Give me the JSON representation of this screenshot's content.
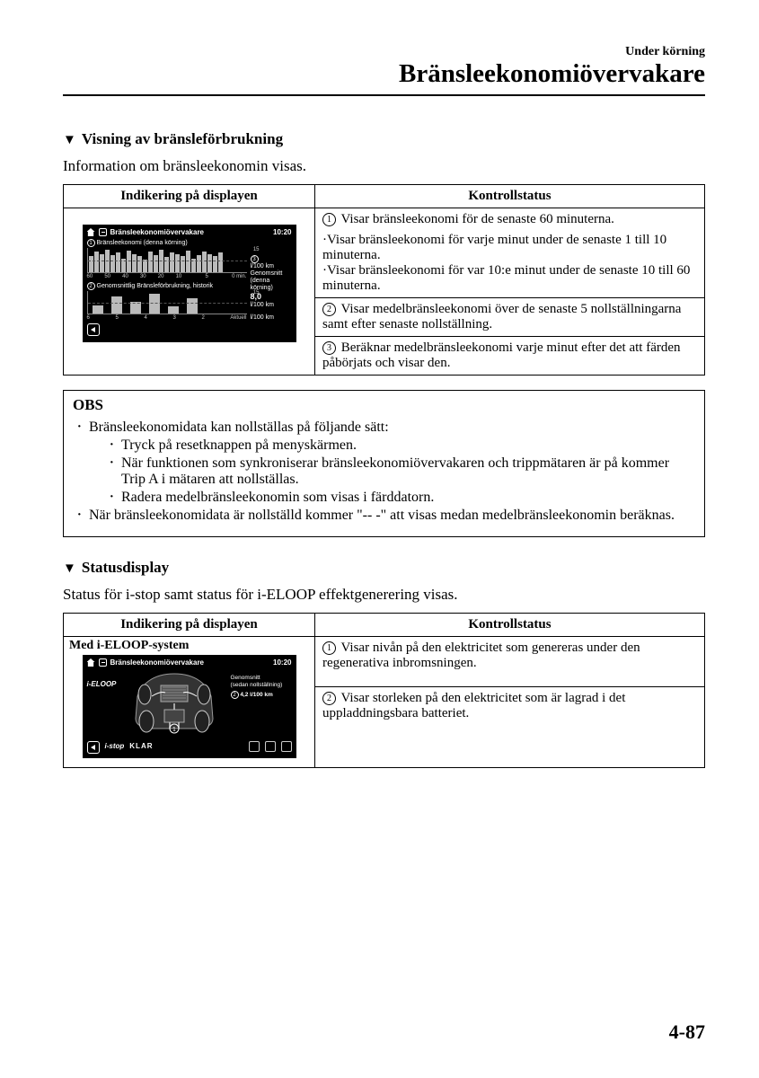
{
  "header": {
    "small": "Under körning",
    "large": "Bränsleekonomiövervakare"
  },
  "section1": {
    "title": "Visning av bränsleförbrukning",
    "intro": "Information om bränsleekonomin visas.",
    "th_display": "Indikering på displayen",
    "th_status": "Kontrollstatus",
    "row1": " Visar bränsleekonomi för de senaste 60 minuterna.",
    "row1b": "·Visar bränsleekonomi för varje minut under de senaste 1 till 10 minuterna.",
    "row1c": "·Visar bränsleekonomi för var 10:e minut under de senaste 10 till 60 minuterna.",
    "row2": " Visar medelbränsleekonomi över de senaste 5 nollställningarna samt efter senaste nollställning.",
    "row3": " Beräknar medelbränsleekonomi varje minut efter det att färden påbörjats och visar den."
  },
  "display1": {
    "title": "Bränsleekonomiövervakare",
    "time": "10:20",
    "chart1_label": "Bränsleekonomi (denna körning)",
    "chart1_x": [
      "60",
      "50",
      "40",
      "30",
      "20",
      "10",
      "",
      "5",
      "",
      "0 min."
    ],
    "chart1_bars": [
      14,
      18,
      16,
      20,
      15,
      17,
      12,
      19,
      16,
      14,
      11,
      18,
      15,
      20,
      13,
      17,
      16,
      14,
      19,
      12,
      15,
      18,
      16,
      14,
      17
    ],
    "chart1_ymax": 15,
    "chart2_label": "Genomsnittlig Bränsleförbrukning, historik",
    "chart2_x": [
      "6",
      "5",
      "4",
      "3",
      "2",
      "Aktuell"
    ],
    "chart2_bars": [
      8,
      16,
      11,
      19,
      7,
      14
    ],
    "chart2_ymax": 15,
    "side_unit": "l/100 km",
    "side_label": "Genomsnitt (denna körning)",
    "avg": "8,0",
    "avg_unit": "l/100 km"
  },
  "obs": {
    "title": "OBS",
    "l1": "Bränsleekonomidata kan nollställas på följande sätt:",
    "l1a": "Tryck på resetknappen på menyskärmen.",
    "l1b": "När funktionen som synkroniserar bränsleekonomiövervakaren och trippmätaren är på kommer Trip A i mätaren att nollställas.",
    "l1c": "Radera medelbränsleekonomin som visas i färddatorn.",
    "l2": "När bränsleekonomidata är nollställd kommer \"-- -\" att visas medan medelbränsleekonomin beräknas."
  },
  "section2": {
    "title": "Statusdisplay",
    "intro": "Status för i-stop samt status för i-ELOOP effektgenerering visas.",
    "th_display": "Indikering på displayen",
    "th_status": "Kontrollstatus",
    "caption": "Med i-ELOOP-system",
    "row1": " Visar nivån på den elektricitet som genereras under den regenerativa inbromsningen.",
    "row2": " Visar storleken på den elektricitet som är lagrad i det uppladdningsbara batteriet."
  },
  "display2": {
    "title": "Bränsleekonomiövervakare",
    "time": "10:20",
    "ieloop": "i-ELOOP",
    "side1": "Genomsnitt",
    "side2": "(sedan nollställning)",
    "side3": "4,2 l/100 km",
    "istop": "i-stop",
    "klar": "KLAR"
  },
  "pagenum": "4-87"
}
